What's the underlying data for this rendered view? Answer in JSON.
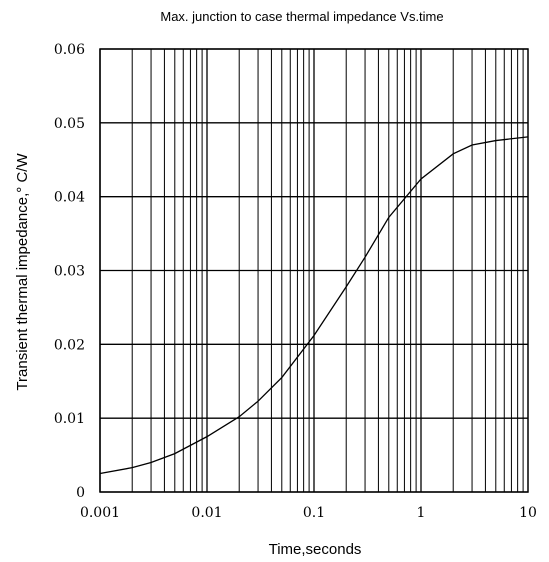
{
  "chart_data": {
    "type": "line",
    "title": "Max. junction to case thermal impedance Vs.time",
    "xlabel": "Time,seconds",
    "ylabel": "Transient thermal impedance,° C/W",
    "x_scale": "log",
    "xlim": [
      0.001,
      10
    ],
    "ylim": [
      0,
      0.06
    ],
    "x_ticks": [
      "0.001",
      "0.01",
      "0.1",
      "1",
      "10"
    ],
    "y_ticks": [
      "0",
      "0.01",
      "0.02",
      "0.03",
      "0.04",
      "0.05",
      "0.06"
    ],
    "grid": true,
    "series": [
      {
        "x": [
          0.001,
          0.002,
          0.003,
          0.005,
          0.01,
          0.02,
          0.03,
          0.05,
          0.1,
          0.2,
          0.3,
          0.5,
          1,
          2,
          3,
          5,
          10
        ],
        "y": [
          0.0025,
          0.0033,
          0.004,
          0.0052,
          0.0075,
          0.0102,
          0.0123,
          0.0155,
          0.0212,
          0.0278,
          0.0318,
          0.0372,
          0.0424,
          0.0458,
          0.047,
          0.0476,
          0.0481
        ]
      }
    ]
  }
}
